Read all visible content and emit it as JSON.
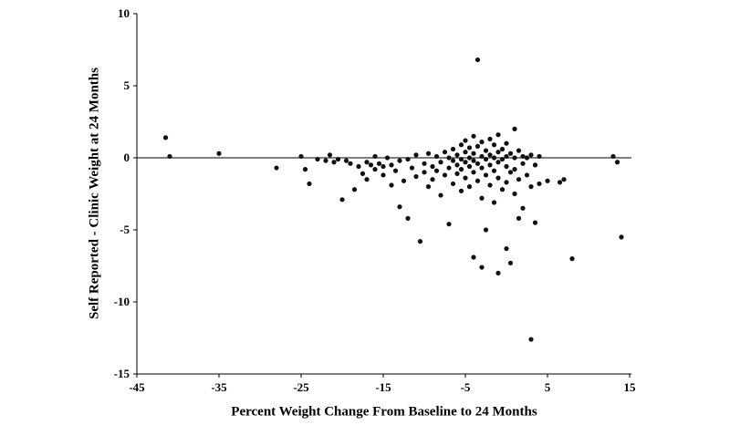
{
  "chart_data": {
    "type": "scatter",
    "title": "",
    "xlabel": "Percent Weight Change From Baseline to 24 Months",
    "ylabel": "Self Reported - Clinic Weight at 24 Months",
    "xlim": [
      -45,
      15
    ],
    "ylim": [
      -15,
      10
    ],
    "x_ticks": [
      -45,
      -35,
      -25,
      -15,
      -5,
      5,
      15
    ],
    "y_ticks": [
      10,
      5,
      0,
      -5,
      -10,
      -15
    ],
    "grid": false,
    "legend": false,
    "zero_line_y": 0,
    "marker_color": "#111111",
    "axis_color": "#000000",
    "points": [
      [
        -41.5,
        1.4
      ],
      [
        -41,
        0.1
      ],
      [
        -35,
        0.3
      ],
      [
        -28,
        -0.7
      ],
      [
        -25,
        0.1
      ],
      [
        -24.5,
        -0.8
      ],
      [
        -24,
        -1.8
      ],
      [
        -23,
        -0.1
      ],
      [
        -22,
        -0.2
      ],
      [
        -21.5,
        0.2
      ],
      [
        -21,
        -0.3
      ],
      [
        -20.5,
        -0.1
      ],
      [
        -20,
        -2.9
      ],
      [
        -19.5,
        -0.2
      ],
      [
        -19,
        -0.4
      ],
      [
        -18.5,
        -2.2
      ],
      [
        -18,
        -0.6
      ],
      [
        -17.5,
        -1.1
      ],
      [
        -17,
        -0.3
      ],
      [
        -17,
        -1.5
      ],
      [
        -16.5,
        -0.5
      ],
      [
        -16,
        0.1
      ],
      [
        -16,
        -0.8
      ],
      [
        -15.5,
        -0.4
      ],
      [
        -15,
        -0.6
      ],
      [
        -15,
        -1.2
      ],
      [
        -14.5,
        0.0
      ],
      [
        -14,
        -0.5
      ],
      [
        -14,
        -1.9
      ],
      [
        -13.5,
        -0.9
      ],
      [
        -13,
        -0.2
      ],
      [
        -13,
        -3.4
      ],
      [
        -12.5,
        -1.6
      ],
      [
        -12,
        -0.1
      ],
      [
        -12,
        -4.2
      ],
      [
        -11.5,
        -0.7
      ],
      [
        -11,
        0.2
      ],
      [
        -11,
        -1.3
      ],
      [
        -10.5,
        -5.8
      ],
      [
        -10,
        -0.4
      ],
      [
        -10,
        -1.0
      ],
      [
        -9.5,
        0.3
      ],
      [
        -9.5,
        -2.0
      ],
      [
        -9,
        -0.6
      ],
      [
        -9,
        -1.5
      ],
      [
        -8.5,
        0.1
      ],
      [
        -8.5,
        -0.9
      ],
      [
        -8,
        -0.3
      ],
      [
        -8,
        -2.6
      ],
      [
        -7.5,
        0.4
      ],
      [
        -7.5,
        -1.2
      ],
      [
        -7,
        0.0
      ],
      [
        -7,
        -0.7
      ],
      [
        -7,
        -4.6
      ],
      [
        -6.5,
        0.6
      ],
      [
        -6.5,
        -0.2
      ],
      [
        -6.5,
        -1.8
      ],
      [
        -6,
        0.2
      ],
      [
        -6,
        -0.5
      ],
      [
        -6,
        -1.1
      ],
      [
        -5.5,
        0.9
      ],
      [
        -5.5,
        -0.1
      ],
      [
        -5.5,
        -0.8
      ],
      [
        -5.5,
        -2.3
      ],
      [
        -5,
        1.2
      ],
      [
        -5,
        0.4
      ],
      [
        -5,
        -0.3
      ],
      [
        -5,
        -1.4
      ],
      [
        -4.5,
        0.7
      ],
      [
        -4.5,
        0.0
      ],
      [
        -4.5,
        -0.6
      ],
      [
        -4.5,
        -2.0
      ],
      [
        -4,
        1.5
      ],
      [
        -4,
        0.3
      ],
      [
        -4,
        -0.2
      ],
      [
        -4,
        -1.0
      ],
      [
        -4,
        -6.9
      ],
      [
        -3.5,
        6.8
      ],
      [
        -3.5,
        0.8
      ],
      [
        -3.5,
        -0.4
      ],
      [
        -3.5,
        -1.6
      ],
      [
        -3,
        1.1
      ],
      [
        -3,
        0.1
      ],
      [
        -3,
        -0.7
      ],
      [
        -3,
        -2.8
      ],
      [
        -3,
        -7.6
      ],
      [
        -2.5,
        0.5
      ],
      [
        -2.5,
        -0.1
      ],
      [
        -2.5,
        -1.2
      ],
      [
        -2.5,
        -5.0
      ],
      [
        -2,
        1.3
      ],
      [
        -2,
        0.2
      ],
      [
        -2,
        -0.5
      ],
      [
        -2,
        -1.9
      ],
      [
        -1.5,
        0.9
      ],
      [
        -1.5,
        0.0
      ],
      [
        -1.5,
        -0.9
      ],
      [
        -1.5,
        -3.1
      ],
      [
        -1,
        1.6
      ],
      [
        -1,
        0.4
      ],
      [
        -1,
        -0.3
      ],
      [
        -1,
        -1.4
      ],
      [
        -1,
        -8.0
      ],
      [
        -0.5,
        0.6
      ],
      [
        -0.5,
        -0.1
      ],
      [
        -0.5,
        -2.2
      ],
      [
        0,
        1.0
      ],
      [
        0,
        0.1
      ],
      [
        0,
        -0.6
      ],
      [
        0,
        -1.7
      ],
      [
        0,
        -6.3
      ],
      [
        0.5,
        0.3
      ],
      [
        0.5,
        -1.0
      ],
      [
        0.5,
        -7.3
      ],
      [
        1,
        2.0
      ],
      [
        1,
        0.0
      ],
      [
        1,
        -0.8
      ],
      [
        1,
        -2.5
      ],
      [
        1.5,
        0.5
      ],
      [
        1.5,
        -1.5
      ],
      [
        1.5,
        -4.2
      ],
      [
        2,
        0.1
      ],
      [
        2,
        -0.4
      ],
      [
        2,
        -3.5
      ],
      [
        2.5,
        0.0
      ],
      [
        2.5,
        -1.2
      ],
      [
        3,
        0.2
      ],
      [
        3,
        -2.0
      ],
      [
        3,
        -12.6
      ],
      [
        3.5,
        -0.5
      ],
      [
        3.5,
        -4.5
      ],
      [
        4,
        0.1
      ],
      [
        4,
        -1.8
      ],
      [
        5,
        -1.6
      ],
      [
        6.5,
        -1.7
      ],
      [
        7,
        -1.5
      ],
      [
        8,
        -7.0
      ],
      [
        13,
        0.1
      ],
      [
        13.5,
        -0.3
      ],
      [
        14,
        -5.5
      ]
    ]
  }
}
